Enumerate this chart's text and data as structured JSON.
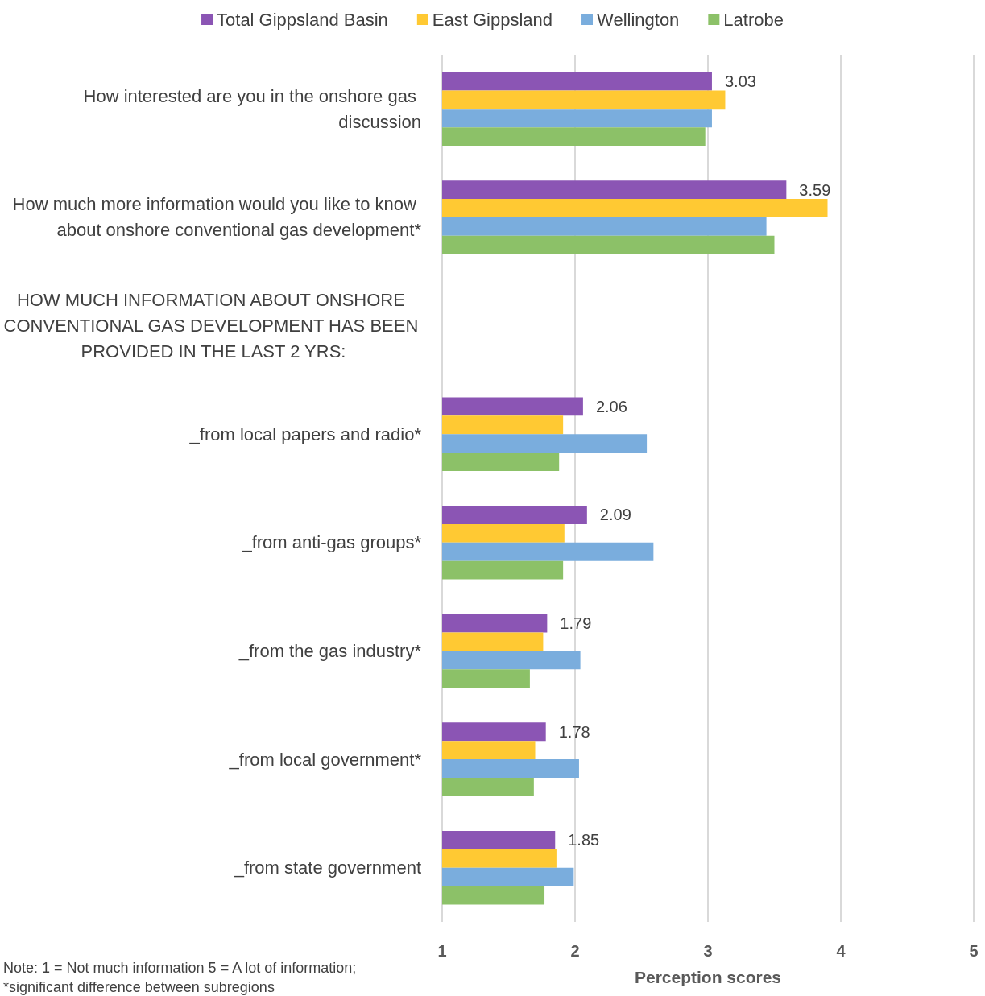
{
  "chart_data": {
    "type": "bar",
    "orientation": "horizontal",
    "categories": [
      "How interested are you in the onshore gas discussion",
      "How much more information would you like to know about onshore conventional gas development*",
      null,
      "_from local papers and radio*",
      "_from anti-gas groups*",
      "_from the gas industry*",
      "_from local government*",
      "_from state government"
    ],
    "series": [
      {
        "name": "Total Gippsland Basin",
        "color": "#8b55b4",
        "values": [
          3.03,
          3.59,
          null,
          2.06,
          2.09,
          1.79,
          1.78,
          1.85
        ],
        "value_labels": [
          "3.03",
          "3.59",
          null,
          "2.06",
          "2.09",
          "1.79",
          "1.78",
          "1.85"
        ]
      },
      {
        "name": "East Gippsland",
        "color": "#ffc933",
        "values": [
          3.13,
          3.9,
          null,
          1.91,
          1.92,
          1.76,
          1.7,
          1.86
        ]
      },
      {
        "name": "Wellington",
        "color": "#7aaddd",
        "values": [
          3.03,
          3.44,
          null,
          2.54,
          2.59,
          2.04,
          2.03,
          1.99
        ]
      },
      {
        "name": "Latrobe",
        "color": "#8cc168",
        "values": [
          2.98,
          3.5,
          null,
          1.88,
          1.91,
          1.66,
          1.69,
          1.77
        ]
      }
    ],
    "xlim": [
      1,
      5
    ],
    "xticks": [
      1,
      2,
      3,
      4,
      5
    ],
    "xlabel": "Perception scores",
    "grid": "x",
    "legend": "top",
    "annotations": [
      "HOW MUCH INFORMATION ABOUT ONSHORE CONVENTIONAL GAS DEVELOPMENT HAS BEEN PROVIDED IN THE LAST 2 YRS:",
      "Note: 1 = Not much information 5 = A lot of information;",
      "*significant difference between subregions"
    ]
  }
}
